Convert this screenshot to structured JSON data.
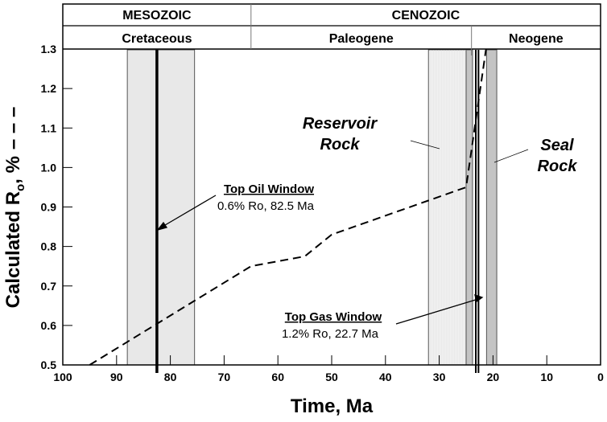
{
  "chart_data": {
    "type": "line",
    "xlabel": "Time, Ma",
    "ylabel": "Calculated R",
    "ylabel_sub": "o",
    "ylabel_suffix": ", %",
    "xlim": [
      100,
      0
    ],
    "ylim": [
      0.5,
      1.3
    ],
    "xticks": [
      100,
      90,
      80,
      70,
      60,
      50,
      40,
      30,
      20,
      10,
      0
    ],
    "yticks": [
      "0.5",
      "0.6",
      "0.7",
      "0.8",
      "0.9",
      "1.0",
      "1.1",
      "1.2",
      "1.3"
    ],
    "eras": [
      {
        "label": "MESOZOIC",
        "from": 100,
        "to": 65
      },
      {
        "label": "CENOZOIC",
        "from": 65,
        "to": 0
      }
    ],
    "periods": [
      {
        "label": "Cretaceous",
        "from": 100,
        "to": 65
      },
      {
        "label": "Paleogene",
        "from": 65,
        "to": 24
      },
      {
        "label": "Neogene",
        "from": 24,
        "to": 0
      }
    ],
    "series": [
      {
        "style": "dashed",
        "x": [
          95,
          65,
          55,
          50,
          25,
          21.3
        ],
        "y": [
          0.5,
          0.75,
          0.775,
          0.83,
          0.95,
          1.3
        ]
      }
    ],
    "bands": [
      {
        "from": 88,
        "to": 75.5,
        "color": "#e8e8e8"
      },
      {
        "from": 32,
        "to": 25,
        "color": "#f2f2f2",
        "hatched": true
      },
      {
        "from": 25,
        "to": 23.8,
        "color": "#c4c4c4"
      },
      {
        "from": 21.2,
        "to": 19.3,
        "color": "#c4c4c4"
      }
    ],
    "vlines": [
      {
        "x": 82.5,
        "width": 3.5
      },
      {
        "x": 23.2,
        "width": 2
      },
      {
        "x": 22.7,
        "width": 2
      }
    ],
    "annotations": {
      "oil_title": "Top Oil Window",
      "oil_detail": "0.6% Ro, 82.5 Ma",
      "gas_title": "Top Gas Window",
      "gas_detail": "1.2% Ro, 22.7 Ma",
      "reservoir_line1": "Reservoir",
      "reservoir_line2": "Rock",
      "seal_line1": "Seal",
      "seal_line2": "Rock"
    }
  }
}
